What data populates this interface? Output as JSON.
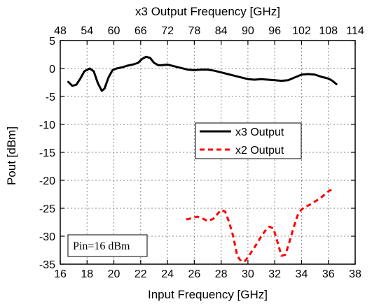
{
  "chart_data": {
    "type": "line",
    "x_label": "Input Frequency [GHz]",
    "x2_label": "x3 Output Frequency [GHz]",
    "y_label": "Pout [dBm]",
    "xlim": [
      16,
      38
    ],
    "ylim": [
      -35,
      5
    ],
    "x2lim": [
      48,
      114
    ],
    "x_ticks": [
      16,
      18,
      20,
      22,
      24,
      26,
      28,
      30,
      32,
      34,
      36,
      38
    ],
    "x2_ticks": [
      48,
      54,
      60,
      66,
      72,
      78,
      84,
      90,
      96,
      102,
      108,
      114
    ],
    "y_ticks": [
      5,
      0,
      -5,
      -10,
      -15,
      -20,
      -25,
      -30,
      -35
    ],
    "grid": true,
    "legend_position": "center-right",
    "annotation": "Pin=16 dBm",
    "series": [
      {
        "name": "x3 Output",
        "color": "#000000",
        "style": "solid",
        "x": [
          16.6,
          16.9,
          17.2,
          17.5,
          17.8,
          18.2,
          18.5,
          18.8,
          19.1,
          19.3,
          19.6,
          19.9,
          20.2,
          20.6,
          21.0,
          21.4,
          21.8,
          22.1,
          22.4,
          22.7,
          23.0,
          23.3,
          23.6,
          24.0,
          24.5,
          25.0,
          25.5,
          26.0,
          26.5,
          27.0,
          27.5,
          28.0,
          28.5,
          29.0,
          29.5,
          30.0,
          30.5,
          31.0,
          31.5,
          32.0,
          32.5,
          33.0,
          33.5,
          34.0,
          34.5,
          35.0,
          35.5,
          36.0,
          36.3,
          36.6
        ],
        "y": [
          -2.4,
          -3.1,
          -2.9,
          -1.8,
          -0.5,
          0.0,
          -0.5,
          -2.6,
          -4.0,
          -3.6,
          -1.6,
          -0.3,
          0.0,
          0.2,
          0.5,
          0.7,
          1.0,
          1.7,
          2.1,
          1.9,
          1.0,
          0.6,
          0.6,
          0.7,
          0.4,
          0.1,
          -0.2,
          -0.3,
          -0.2,
          -0.2,
          -0.4,
          -0.7,
          -1.0,
          -1.3,
          -1.6,
          -1.9,
          -2.0,
          -1.9,
          -2.0,
          -2.1,
          -2.2,
          -2.1,
          -1.6,
          -1.1,
          -1.0,
          -1.1,
          -1.5,
          -1.8,
          -2.2,
          -2.8
        ]
      },
      {
        "name": "x2 Output",
        "color": "#ff0000",
        "style": "dashed",
        "x": [
          25.4,
          25.8,
          26.2,
          26.6,
          27.0,
          27.4,
          27.7,
          28.0,
          28.3,
          28.6,
          28.9,
          29.2,
          29.5,
          29.8,
          30.1,
          30.4,
          30.7,
          31.0,
          31.3,
          31.6,
          31.9,
          32.2,
          32.5,
          32.8,
          33.1,
          33.4,
          33.7,
          34.0,
          34.3,
          34.6,
          35.0,
          35.4,
          35.8,
          36.1,
          36.4
        ],
        "y": [
          -27.0,
          -26.8,
          -26.5,
          -26.8,
          -27.3,
          -26.9,
          -26.1,
          -25.3,
          -25.6,
          -27.5,
          -30.0,
          -33.5,
          -34.5,
          -34.4,
          -33.4,
          -32.3,
          -31.2,
          -30.0,
          -29.0,
          -28.3,
          -28.6,
          -31.0,
          -33.5,
          -33.3,
          -31.0,
          -28.5,
          -26.3,
          -25.2,
          -24.7,
          -24.4,
          -23.8,
          -23.2,
          -22.4,
          -21.8,
          -21.6
        ]
      }
    ]
  }
}
